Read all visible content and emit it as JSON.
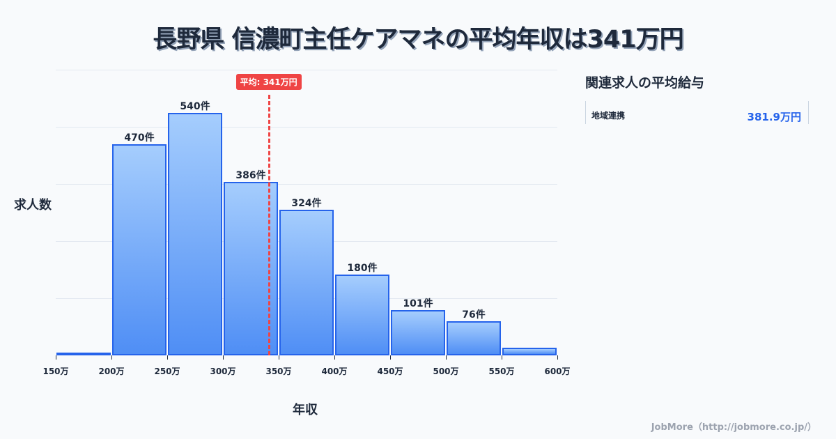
{
  "title": "長野県 信濃町主任ケアマネの平均年収は341万円",
  "chart_data": {
    "type": "bar",
    "title": "長野県 信濃町主任ケアマネの平均年収は341万円",
    "xlabel": "年収",
    "ylabel": "求人数",
    "categories": [
      "150-200万",
      "200-250万",
      "250-300万",
      "300-350万",
      "350-400万",
      "400-450万",
      "450-500万",
      "500-550万",
      "550-600万"
    ],
    "bin_edges": [
      150,
      200,
      250,
      300,
      350,
      400,
      450,
      500,
      550,
      600
    ],
    "values": [
      3,
      470,
      540,
      386,
      324,
      180,
      101,
      76,
      17
    ],
    "value_labels": [
      "",
      "470件",
      "540件",
      "386件",
      "324件",
      "180件",
      "101件",
      "76件",
      ""
    ],
    "x_tick_labels": [
      "150万",
      "200万",
      "250万",
      "300万",
      "350万",
      "400万",
      "450万",
      "500万",
      "550万",
      "600万"
    ],
    "xlim": [
      150,
      600
    ],
    "ylim": [
      0,
      636
    ],
    "grid": true,
    "mean": 341,
    "mean_label": "平均: 341万円",
    "colors": {
      "bar_fill_top": "#a5cdfd",
      "bar_fill_bottom": "#4f8ef5",
      "bar_border": "#2563eb",
      "mean_line": "#ef4444"
    }
  },
  "sidebar": {
    "title": "関連求人の平均給与",
    "items": [
      {
        "name": "地域連携",
        "value": "381.9万円"
      }
    ]
  },
  "footer": "JobMore（http://jobmore.co.jp/）"
}
